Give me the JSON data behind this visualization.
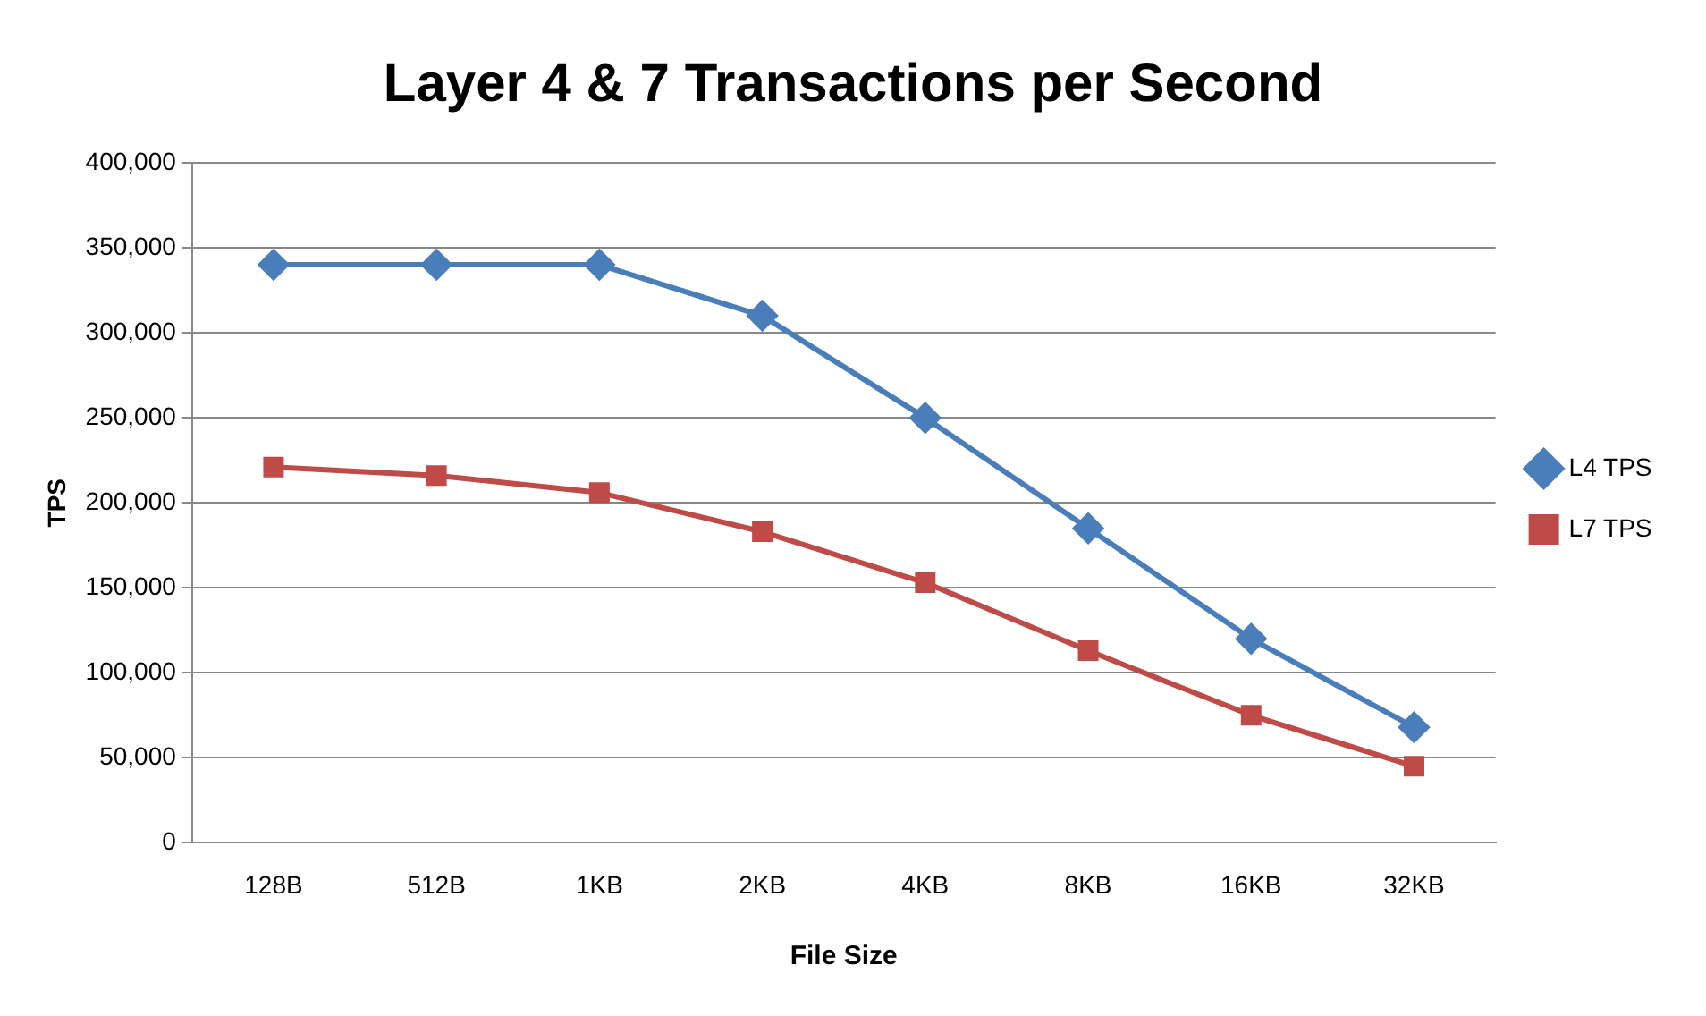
{
  "chart_data": {
    "type": "line",
    "title": "Layer 4 & 7 Transactions per Second",
    "xlabel": "File Size",
    "ylabel": "TPS",
    "categories": [
      "128B",
      "512B",
      "1KB",
      "2KB",
      "4KB",
      "8KB",
      "16KB",
      "32KB"
    ],
    "series": [
      {
        "name": "L4 TPS",
        "color": "#4a7ebb",
        "marker": "diamond",
        "values": [
          340000,
          340000,
          340000,
          310000,
          250000,
          185000,
          120000,
          68000
        ]
      },
      {
        "name": "L7 TPS",
        "color": "#be4b48",
        "marker": "square",
        "values": [
          221000,
          216000,
          206000,
          183000,
          153000,
          113000,
          75000,
          45000
        ]
      }
    ],
    "ylim": [
      0,
      400000
    ],
    "yticks": [
      {
        "value": 0,
        "label": "0"
      },
      {
        "value": 50000,
        "label": "50,000"
      },
      {
        "value": 100000,
        "label": "100,000"
      },
      {
        "value": 150000,
        "label": "150,000"
      },
      {
        "value": 200000,
        "label": "200,000"
      },
      {
        "value": 250000,
        "label": "250,000"
      },
      {
        "value": 300000,
        "label": "300,000"
      },
      {
        "value": 350000,
        "label": "350,000"
      },
      {
        "value": 400000,
        "label": "400,000"
      }
    ],
    "grid": "y",
    "legend": "right",
    "line_style": "solid"
  }
}
